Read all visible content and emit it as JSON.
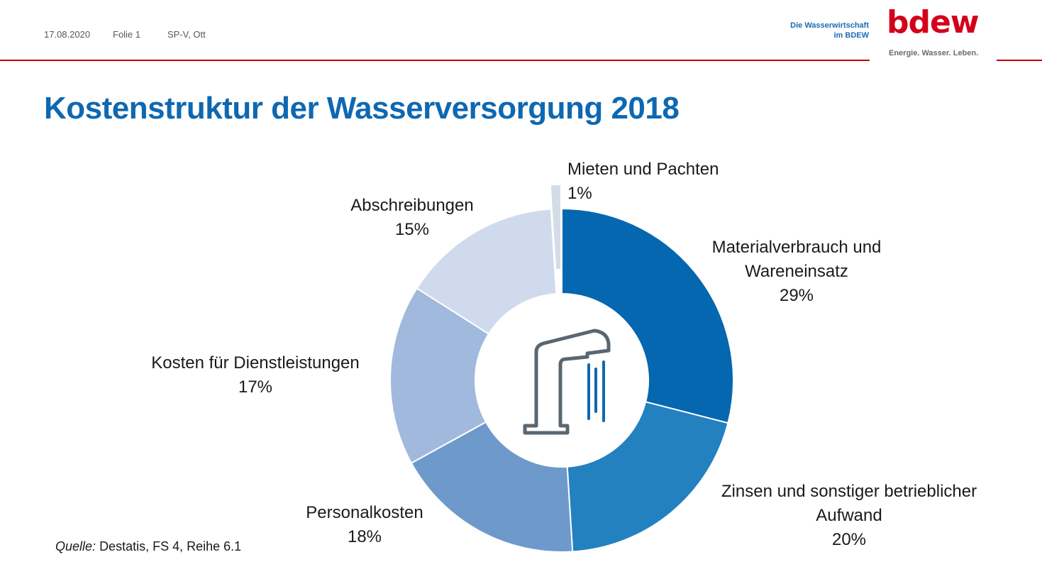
{
  "header": {
    "date": "17.08.2020",
    "slide": "Folie 1",
    "author": "SP-V, Ott",
    "branch_line1": "Die Wasserwirtschaft",
    "branch_line2": "im BDEW",
    "logo_text": "bdew",
    "logo_tagline": "Energie. Wasser. Leben.",
    "accent_color": "#c00000",
    "logo_color": "#d4001a"
  },
  "title": "Kostenstruktur der Wasserversorgung 2018",
  "source": {
    "prefix": "Quelle:",
    "text": "Destatis, FS 4, Reihe 6.1"
  },
  "center_icon": "water-faucet-icon",
  "chart_data": {
    "type": "donut",
    "title": "Kostenstruktur der Wasserversorgung 2018",
    "unit": "%",
    "slices": [
      {
        "label_lines": [
          "Materialverbrauch und",
          "Wareneinsatz"
        ],
        "value": 29,
        "value_label": "29%",
        "color": "#0467b0"
      },
      {
        "label_lines": [
          "Zinsen und sonstiger betrieblicher",
          "Aufwand"
        ],
        "value": 20,
        "value_label": "20%",
        "color": "#2381bf"
      },
      {
        "label_lines": [
          "Personalkosten"
        ],
        "value": 18,
        "value_label": "18%",
        "color": "#6d9acb"
      },
      {
        "label_lines": [
          "Kosten für Dienstleistungen"
        ],
        "value": 17,
        "value_label": "17%",
        "color": "#a0b9dd"
      },
      {
        "label_lines": [
          "Abschreibungen"
        ],
        "value": 15,
        "value_label": "15%",
        "color": "#cfdbec"
      },
      {
        "label_lines": [
          "Mieten und Pachten"
        ],
        "value": 1,
        "value_label": "1%",
        "color": "#d4dce6",
        "exploded": true
      }
    ]
  }
}
